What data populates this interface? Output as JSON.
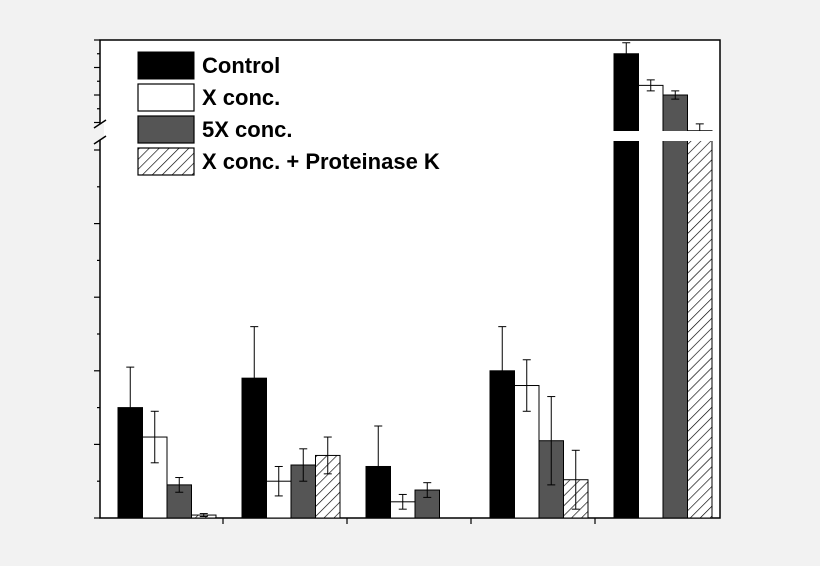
{
  "chart_data": {
    "type": "bar",
    "title": "",
    "xlabel": "",
    "ylabel": "",
    "categories": [
      "",
      "",
      "",
      "",
      ""
    ],
    "axis_break": true,
    "grid": false,
    "legend_position": "top-left",
    "series": [
      {
        "name": "Control",
        "fill": "#000000",
        "pattern": "solid",
        "values": [
          1.5,
          1.9,
          0.7,
          2.0,
          10.5
        ],
        "errors": [
          0.55,
          0.7,
          0.55,
          0.6,
          0.4
        ]
      },
      {
        "name": "X conc.",
        "fill": "#ffffff",
        "pattern": "solid",
        "values": [
          1.1,
          0.5,
          0.22,
          1.8,
          9.35
        ],
        "errors": [
          0.35,
          0.2,
          0.1,
          0.35,
          0.2
        ]
      },
      {
        "name": "5X conc.",
        "fill": "#555555",
        "pattern": "solid",
        "values": [
          0.45,
          0.72,
          0.38,
          1.05,
          9.0
        ],
        "errors": [
          0.1,
          0.22,
          0.1,
          0.6,
          0.15
        ]
      },
      {
        "name": "X conc. + Proteinase K",
        "fill": "#ffffff",
        "pattern": "hatched",
        "values": [
          0.04,
          0.85,
          null,
          0.52,
          7.7
        ],
        "errors": [
          0.02,
          0.25,
          null,
          0.4,
          0.25
        ]
      }
    ]
  }
}
